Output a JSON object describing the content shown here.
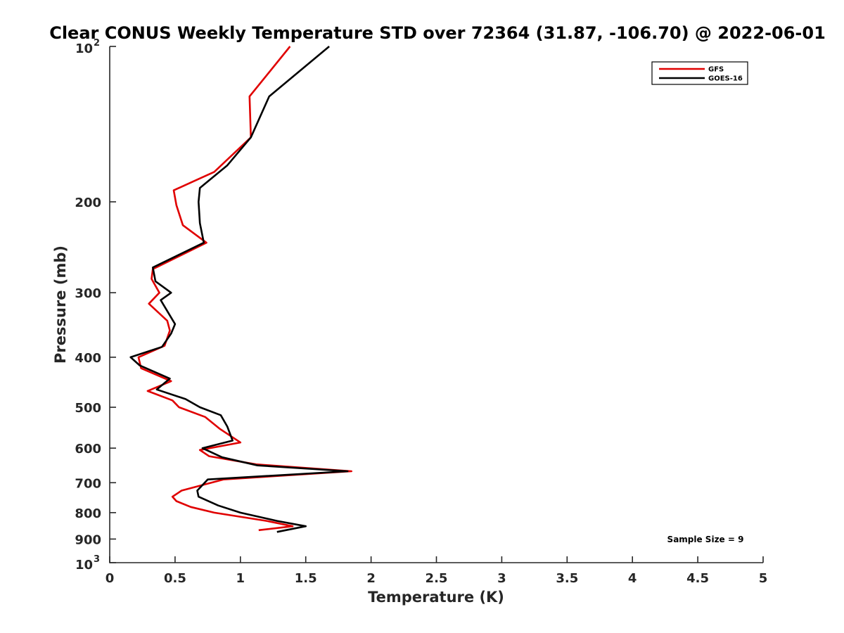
{
  "chart_data": {
    "type": "line",
    "title": "Clear CONUS Weekly Temperature STD over 72364 (31.87, -106.70) @ 2022-06-01",
    "xlabel": "Temperature (K)",
    "ylabel": "Pressure (mb)",
    "xlim": [
      0,
      5
    ],
    "ylim": [
      100,
      1000
    ],
    "yscale": "log",
    "y_reversed": true,
    "x_ticks": [
      "0",
      "0.5",
      "1",
      "1.5",
      "2",
      "2.5",
      "3",
      "3.5",
      "4",
      "4.5",
      "5"
    ],
    "y_ticks": [
      {
        "value": 100,
        "base": "10",
        "exp": "2"
      },
      {
        "value": 200,
        "label": "200"
      },
      {
        "value": 300,
        "label": "300"
      },
      {
        "value": 400,
        "label": "400"
      },
      {
        "value": 500,
        "label": "500"
      },
      {
        "value": 600,
        "label": "600"
      },
      {
        "value": 700,
        "label": "700"
      },
      {
        "value": 800,
        "label": "800"
      },
      {
        "value": 900,
        "label": "900"
      },
      {
        "value": 1000,
        "base": "10",
        "exp": "3"
      }
    ],
    "grid": false,
    "legend_position": "top-right",
    "annotation": "Sample Size = 9",
    "series": [
      {
        "name": "GFS",
        "color": "#e00000",
        "points": [
          [
            1.38,
            100
          ],
          [
            1.07,
            125
          ],
          [
            1.08,
            150
          ],
          [
            0.8,
            175
          ],
          [
            0.49,
            190
          ],
          [
            0.51,
            203
          ],
          [
            0.56,
            222
          ],
          [
            0.74,
            240
          ],
          [
            0.33,
            270
          ],
          [
            0.32,
            282
          ],
          [
            0.38,
            300
          ],
          [
            0.3,
            315
          ],
          [
            0.44,
            340
          ],
          [
            0.46,
            355
          ],
          [
            0.42,
            380
          ],
          [
            0.22,
            400
          ],
          [
            0.24,
            420
          ],
          [
            0.47,
            445
          ],
          [
            0.29,
            465
          ],
          [
            0.48,
            485
          ],
          [
            0.53,
            500
          ],
          [
            0.73,
            522
          ],
          [
            0.84,
            550
          ],
          [
            1.0,
            585
          ],
          [
            0.69,
            605
          ],
          [
            0.76,
            622
          ],
          [
            1.12,
            645
          ],
          [
            1.85,
            665
          ],
          [
            0.87,
            690
          ],
          [
            0.55,
            725
          ],
          [
            0.48,
            745
          ],
          [
            0.51,
            760
          ],
          [
            0.62,
            780
          ],
          [
            0.8,
            800
          ],
          [
            1.2,
            830
          ],
          [
            1.4,
            850
          ],
          [
            1.14,
            865
          ]
        ]
      },
      {
        "name": "GOES-16",
        "color": "#000000",
        "points": [
          [
            1.68,
            100
          ],
          [
            1.22,
            125
          ],
          [
            1.08,
            150
          ],
          [
            0.9,
            170
          ],
          [
            0.69,
            188
          ],
          [
            0.68,
            200
          ],
          [
            0.69,
            220
          ],
          [
            0.72,
            240
          ],
          [
            0.33,
            268
          ],
          [
            0.35,
            285
          ],
          [
            0.47,
            300
          ],
          [
            0.39,
            310
          ],
          [
            0.5,
            345
          ],
          [
            0.47,
            360
          ],
          [
            0.4,
            382
          ],
          [
            0.16,
            400
          ],
          [
            0.23,
            415
          ],
          [
            0.46,
            440
          ],
          [
            0.36,
            462
          ],
          [
            0.58,
            482
          ],
          [
            0.69,
            500
          ],
          [
            0.85,
            518
          ],
          [
            0.9,
            545
          ],
          [
            0.94,
            580
          ],
          [
            0.71,
            600
          ],
          [
            0.86,
            625
          ],
          [
            1.13,
            648
          ],
          [
            1.82,
            665
          ],
          [
            0.75,
            690
          ],
          [
            0.67,
            725
          ],
          [
            0.68,
            745
          ],
          [
            0.83,
            775
          ],
          [
            1.0,
            800
          ],
          [
            1.28,
            830
          ],
          [
            1.5,
            850
          ],
          [
            1.28,
            872
          ]
        ]
      }
    ]
  }
}
